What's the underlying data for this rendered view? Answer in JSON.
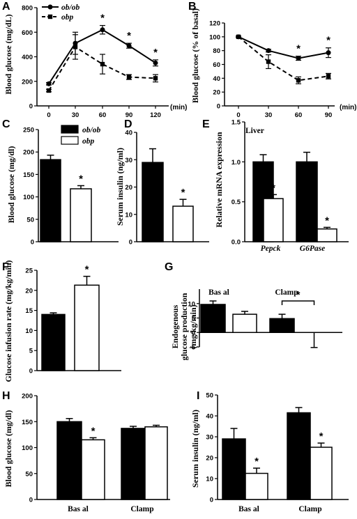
{
  "colors": {
    "ob_ob": "#000000",
    "obp": "#ffffff",
    "axis": "#000000"
  },
  "chart_data": [
    {
      "panel": "A",
      "type": "line",
      "xlabel": "(min)",
      "ylabel": "Blood glucose (mg/dL)",
      "x": [
        0,
        30,
        60,
        90,
        120
      ],
      "ylim": [
        0,
        800
      ],
      "yticks": [
        0,
        200,
        400,
        600,
        800
      ],
      "legend": "top-left",
      "series": [
        {
          "name": "ob/ob",
          "values": [
            180,
            510,
            620,
            490,
            350
          ],
          "err": [
            10,
            90,
            35,
            20,
            25
          ]
        },
        {
          "name": "obp",
          "values": [
            125,
            480,
            340,
            235,
            225
          ],
          "err": [
            10,
            100,
            80,
            20,
            30
          ]
        }
      ],
      "annotations": [
        {
          "x": 60,
          "text": "*"
        },
        {
          "x": 90,
          "text": "*"
        },
        {
          "x": 120,
          "text": "*"
        }
      ]
    },
    {
      "panel": "B",
      "type": "line",
      "xlabel": "(min)",
      "ylabel": "Blood glucose (% of basal)",
      "x": [
        0,
        30,
        60,
        90
      ],
      "ylim": [
        0,
        120
      ],
      "yticks": [
        0,
        20,
        40,
        60,
        80,
        100,
        120
      ],
      "series": [
        {
          "name": "ob/ob",
          "values": [
            100,
            80,
            69,
            77
          ],
          "err": [
            1,
            2,
            3,
            7
          ]
        },
        {
          "name": "obp",
          "values": [
            100,
            64,
            37,
            43
          ],
          "err": [
            1,
            10,
            5,
            4
          ]
        }
      ],
      "annotations": [
        {
          "x": 60,
          "text": "*"
        },
        {
          "x": 90,
          "text": "*"
        }
      ]
    },
    {
      "panel": "C",
      "type": "bar",
      "ylabel": "Blood glucose (mg/dl)",
      "ylim": [
        0,
        250
      ],
      "yticks": [
        0,
        50,
        100,
        150,
        200,
        250
      ],
      "legend": "top-right",
      "series": [
        {
          "name": "ob/ob",
          "values": [
            183
          ],
          "err": [
            10
          ]
        },
        {
          "name": "obp",
          "values": [
            118
          ],
          "err": [
            7
          ]
        }
      ],
      "annotations": [
        {
          "series": "obp",
          "text": "*"
        }
      ]
    },
    {
      "panel": "D",
      "type": "bar",
      "ylabel": "Serum insulin (ng/ml)",
      "ylim": [
        0,
        40
      ],
      "yticks": [
        0,
        10,
        20,
        30,
        40
      ],
      "series": [
        {
          "name": "ob/ob",
          "values": [
            29
          ],
          "err": [
            5
          ]
        },
        {
          "name": "obp",
          "values": [
            13
          ],
          "err": [
            2.5
          ]
        }
      ],
      "annotations": [
        {
          "series": "obp",
          "text": "*"
        }
      ]
    },
    {
      "panel": "E",
      "type": "bar",
      "title": "Liver",
      "ylabel": "Relative mRNA expression",
      "ylim": [
        0,
        1.5
      ],
      "yticks": [
        0.0,
        0.5,
        1.0,
        1.5
      ],
      "categories": [
        "Pepck",
        "G6Pase"
      ],
      "series": [
        {
          "name": "ob/ob",
          "values": [
            1.0,
            1.0
          ],
          "err": [
            0.09,
            0.12
          ]
        },
        {
          "name": "obp",
          "values": [
            0.54,
            0.16
          ],
          "err": [
            0.05,
            0.02
          ]
        }
      ],
      "annotations": [
        {
          "category": "Pepck",
          "text": "*"
        },
        {
          "category": "G6Pase",
          "text": "*"
        }
      ]
    },
    {
      "panel": "F",
      "type": "bar",
      "ylabel": "Glucose infusion rate (mg/kg/min)",
      "ylim": [
        0,
        25
      ],
      "yticks": [
        0,
        5,
        10,
        15,
        20,
        25
      ],
      "series": [
        {
          "name": "ob/ob",
          "values": [
            14
          ],
          "err": [
            0.4
          ]
        },
        {
          "name": "obp",
          "values": [
            21.3
          ],
          "err": [
            2.2
          ]
        }
      ],
      "annotations": [
        {
          "series": "obp",
          "text": "*"
        }
      ]
    },
    {
      "panel": "G",
      "type": "bar",
      "ylabel": "Endogenous glucose production (mg/kg/min)",
      "ylim": [
        -5,
        15
      ],
      "yticks": [
        -5,
        0,
        5,
        10
      ],
      "categories": [
        "Basal",
        "Clamp"
      ],
      "category_labels": [
        "Bas al",
        "Clamp"
      ],
      "series": [
        {
          "name": "ob/ob",
          "values": [
            9.7,
            4.8
          ],
          "err": [
            1.2,
            1.5
          ]
        },
        {
          "name": "obp",
          "values": [
            6.3,
            -2.2
          ],
          "err": [
            1.0,
            3.0
          ]
        }
      ],
      "annotations": [
        {
          "category": "Clamp",
          "text": "*",
          "bracket": true
        }
      ]
    },
    {
      "panel": "H",
      "type": "bar",
      "ylabel": "Blood glucose (mg/dl)",
      "ylim": [
        0,
        200
      ],
      "yticks": [
        0,
        50,
        100,
        150,
        200
      ],
      "categories": [
        "Basal",
        "Clamp"
      ],
      "category_labels": [
        "Bas al",
        "Clamp"
      ],
      "series": [
        {
          "name": "ob/ob",
          "values": [
            150,
            137
          ],
          "err": [
            6,
            4
          ]
        },
        {
          "name": "obp",
          "values": [
            115,
            140
          ],
          "err": [
            4,
            3
          ]
        }
      ],
      "annotations": [
        {
          "category": "Basal",
          "text": "*"
        }
      ]
    },
    {
      "panel": "I",
      "type": "bar",
      "ylabel": "Serum insulin (ng/ml)",
      "ylim": [
        0,
        50
      ],
      "yticks": [
        0,
        10,
        20,
        30,
        40,
        50
      ],
      "categories": [
        "Basal",
        "Clamp"
      ],
      "category_labels": [
        "Bas al",
        "Clamp"
      ],
      "series": [
        {
          "name": "ob/ob",
          "values": [
            29,
            41.5
          ],
          "err": [
            5,
            2.5
          ]
        },
        {
          "name": "obp",
          "values": [
            12.5,
            25
          ],
          "err": [
            2.5,
            2
          ]
        }
      ],
      "annotations": [
        {
          "category": "Basal",
          "text": "*"
        },
        {
          "category": "Clamp",
          "text": "*"
        }
      ]
    }
  ]
}
